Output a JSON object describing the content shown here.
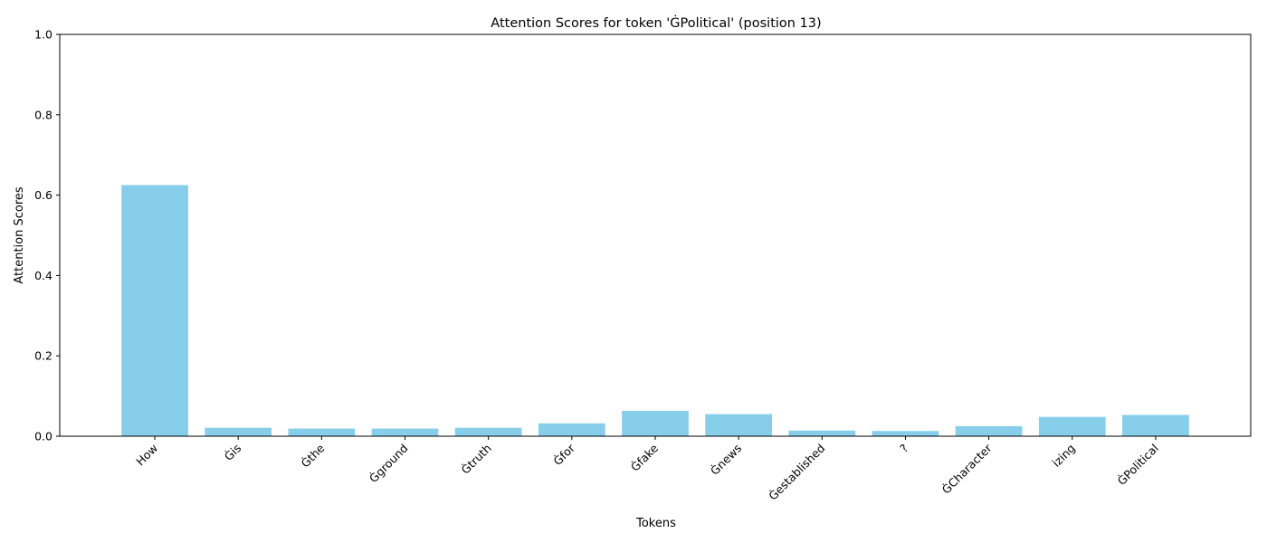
{
  "chart_data": {
    "type": "bar",
    "title": "Attention Scores for token 'ĠPolitical' (position 13)",
    "xlabel": "Tokens",
    "ylabel": "Attention Scores",
    "ylim": [
      0,
      1
    ],
    "yticks": [
      "0.0",
      "0.2",
      "0.4",
      "0.6",
      "0.8",
      "1.0"
    ],
    "grid": false,
    "legend": "none",
    "bar_color": "#87ceeb",
    "categories": [
      "How",
      "Ġis",
      "Ġthe",
      "Ġground",
      "Ġtruth",
      "Ġfor",
      "Ġfake",
      "Ġnews",
      "Ġestablished",
      "?",
      "ĠCharacter",
      "izing",
      "ĠPolitical"
    ],
    "values": [
      0.625,
      0.021,
      0.019,
      0.019,
      0.021,
      0.032,
      0.063,
      0.055,
      0.014,
      0.013,
      0.025,
      0.048,
      0.053
    ]
  }
}
